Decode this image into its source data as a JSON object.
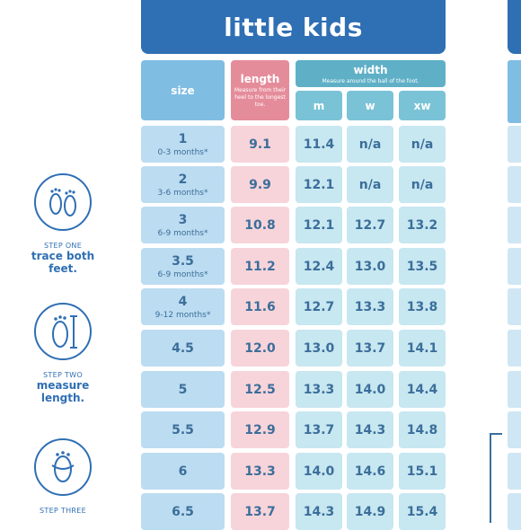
{
  "title": "little kids",
  "headers": {
    "size": "size",
    "length": "length",
    "length_note": "Measure from their heel to the longest toe.",
    "width": "width",
    "width_note": "Measure around the ball of the foot.",
    "width_sub": [
      "m",
      "w",
      "xw"
    ]
  },
  "rows": [
    {
      "size": "1",
      "age": "0-3 months*",
      "length": "9.1",
      "m": "11.4",
      "w": "n/a",
      "xw": "n/a"
    },
    {
      "size": "2",
      "age": "3-6 months*",
      "length": "9.9",
      "m": "12.1",
      "w": "n/a",
      "xw": "n/a"
    },
    {
      "size": "3",
      "age": "6-9 months*",
      "length": "10.8",
      "m": "12.1",
      "w": "12.7",
      "xw": "13.2"
    },
    {
      "size": "3.5",
      "age": "6-9 months*",
      "length": "11.2",
      "m": "12.4",
      "w": "13.0",
      "xw": "13.5"
    },
    {
      "size": "4",
      "age": "9-12 months*",
      "length": "11.6",
      "m": "12.7",
      "w": "13.3",
      "xw": "13.8"
    },
    {
      "size": "4.5",
      "age": "",
      "length": "12.0",
      "m": "13.0",
      "w": "13.7",
      "xw": "14.1"
    },
    {
      "size": "5",
      "age": "",
      "length": "12.5",
      "m": "13.3",
      "w": "14.0",
      "xw": "14.4"
    },
    {
      "size": "5.5",
      "age": "",
      "length": "12.9",
      "m": "13.7",
      "w": "14.3",
      "xw": "14.8"
    },
    {
      "size": "6",
      "age": "",
      "length": "13.3",
      "m": "14.0",
      "w": "14.6",
      "xw": "15.1"
    },
    {
      "size": "6.5",
      "age": "",
      "length": "13.7",
      "m": "14.3",
      "w": "14.9",
      "xw": "15.4"
    }
  ],
  "steps": [
    {
      "label": "STEP ONE",
      "line1": "trace both",
      "line2": "feet.",
      "icon": "footprints-icon"
    },
    {
      "label": "STEP TWO",
      "line1": "measure",
      "line2": "length.",
      "icon": "foot-length-icon"
    },
    {
      "label": "STEP THREE",
      "line1": "",
      "line2": "",
      "icon": "foot-width-icon"
    }
  ],
  "colors": {
    "brand_blue": "#2f6fb4",
    "size_header": "#7fbde3",
    "length_header": "#e58c9b",
    "width_header": "#5fb0c7",
    "size_cell": "#bcdcf1",
    "length_cell": "#f7d4da",
    "width_cell": "#c7e7f1"
  }
}
